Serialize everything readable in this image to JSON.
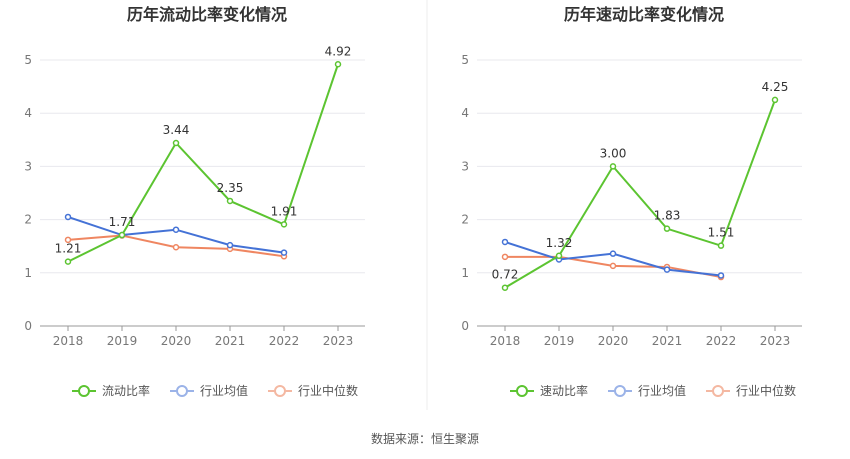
{
  "source_text": "数据来源：恒生聚源",
  "colors": {
    "primary": "#5cc431",
    "average": "#4472d6",
    "median": "#ef8661",
    "grid": "#e8e8ee",
    "axis": "#999999"
  },
  "chart_data": [
    {
      "type": "line",
      "title": "历年流动比率变化情况",
      "categories": [
        "2018",
        "2019",
        "2020",
        "2021",
        "2022",
        "2023"
      ],
      "ylim": [
        0,
        5
      ],
      "yticks": [
        "0",
        "1",
        "2",
        "3",
        "4",
        "5"
      ],
      "series": [
        {
          "name": "流动比率",
          "color": "#5cc431",
          "values": [
            1.21,
            1.71,
            3.44,
            2.35,
            1.91,
            4.92
          ],
          "labels": [
            "1.21",
            "1.71",
            "3.44",
            "2.35",
            "1.91",
            "4.92"
          ]
        },
        {
          "name": "行业均值",
          "color": "#4472d6",
          "values": [
            2.05,
            1.71,
            1.81,
            1.52,
            1.38,
            null
          ]
        },
        {
          "name": "行业中位数",
          "color": "#ef8661",
          "values": [
            1.62,
            1.7,
            1.48,
            1.45,
            1.31,
            null
          ]
        }
      ]
    },
    {
      "type": "line",
      "title": "历年速动比率变化情况",
      "categories": [
        "2018",
        "2019",
        "2020",
        "2021",
        "2022",
        "2023"
      ],
      "ylim": [
        0,
        5
      ],
      "yticks": [
        "0",
        "1",
        "2",
        "3",
        "4",
        "5"
      ],
      "series": [
        {
          "name": "速动比率",
          "color": "#5cc431",
          "values": [
            0.72,
            1.32,
            3.0,
            1.83,
            1.51,
            4.25
          ],
          "labels": [
            "0.72",
            "1.32",
            "3.00",
            "1.83",
            "1.51",
            "4.25"
          ]
        },
        {
          "name": "行业均值",
          "color": "#4472d6",
          "values": [
            1.58,
            1.25,
            1.36,
            1.06,
            0.95,
            null
          ]
        },
        {
          "name": "行业中位数",
          "color": "#ef8661",
          "values": [
            1.3,
            1.3,
            1.13,
            1.11,
            0.92,
            null
          ]
        }
      ]
    }
  ]
}
